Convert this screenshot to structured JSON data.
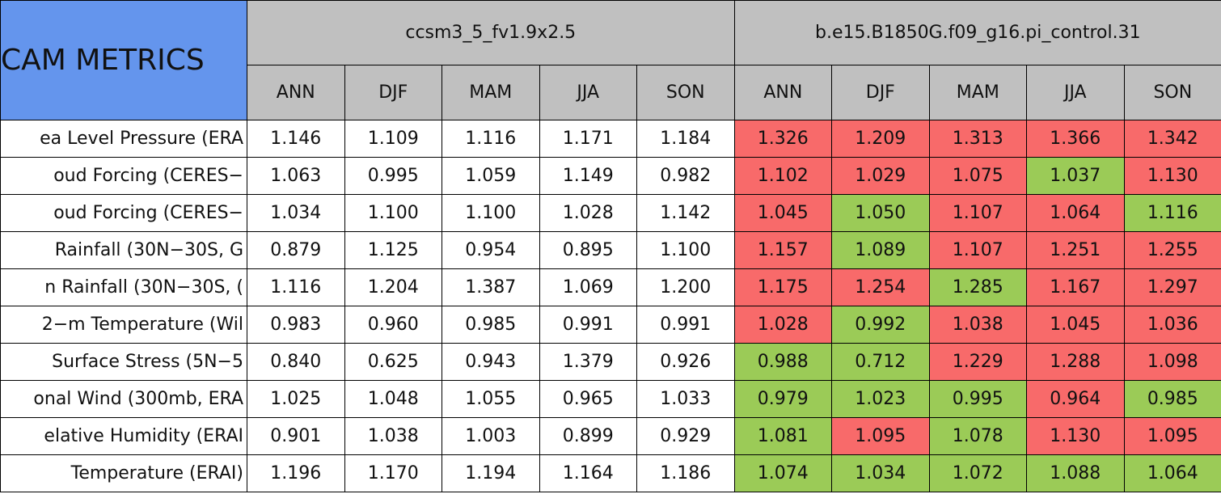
{
  "header": {
    "title": "CAM METRICS",
    "groups": [
      "ccsm3_5_fv1.9x2.5",
      "b.e15.B1850G.f09_g16.pi_control.31"
    ],
    "columns": [
      "ANN",
      "DJF",
      "MAM",
      "JJA",
      "SON",
      "ANN",
      "DJF",
      "MAM",
      "JJA",
      "SON"
    ]
  },
  "colors": {
    "title": "#6495ed",
    "header": "#c0c0c0",
    "plain": "#ffffff",
    "worse": "#f86a6a",
    "better": "#9bcb57"
  },
  "rows": [
    {
      "label": "ea Level Pressure (ERA",
      "values": [
        "1.146",
        "1.109",
        "1.116",
        "1.171",
        "1.184",
        "1.326",
        "1.209",
        "1.313",
        "1.366",
        "1.342"
      ],
      "colors": [
        "plain",
        "plain",
        "plain",
        "plain",
        "plain",
        "worse",
        "worse",
        "worse",
        "worse",
        "worse"
      ]
    },
    {
      "label": "oud Forcing (CERES−",
      "values": [
        "1.063",
        "0.995",
        "1.059",
        "1.149",
        "0.982",
        "1.102",
        "1.029",
        "1.075",
        "1.037",
        "1.130"
      ],
      "colors": [
        "plain",
        "plain",
        "plain",
        "plain",
        "plain",
        "worse",
        "worse",
        "worse",
        "better",
        "worse"
      ]
    },
    {
      "label": "oud Forcing (CERES−",
      "values": [
        "1.034",
        "1.100",
        "1.100",
        "1.028",
        "1.142",
        "1.045",
        "1.050",
        "1.107",
        "1.064",
        "1.116"
      ],
      "colors": [
        "plain",
        "plain",
        "plain",
        "plain",
        "plain",
        "worse",
        "better",
        "worse",
        "worse",
        "better"
      ]
    },
    {
      "label": "Rainfall (30N−30S, G",
      "values": [
        "0.879",
        "1.125",
        "0.954",
        "0.895",
        "1.100",
        "1.157",
        "1.089",
        "1.107",
        "1.251",
        "1.255"
      ],
      "colors": [
        "plain",
        "plain",
        "plain",
        "plain",
        "plain",
        "worse",
        "better",
        "worse",
        "worse",
        "worse"
      ]
    },
    {
      "label": "n Rainfall (30N−30S, (",
      "values": [
        "1.116",
        "1.204",
        "1.387",
        "1.069",
        "1.200",
        "1.175",
        "1.254",
        "1.285",
        "1.167",
        "1.297"
      ],
      "colors": [
        "plain",
        "plain",
        "plain",
        "plain",
        "plain",
        "worse",
        "worse",
        "better",
        "worse",
        "worse"
      ]
    },
    {
      "label": "2−m Temperature (Wil",
      "values": [
        "0.983",
        "0.960",
        "0.985",
        "0.991",
        "0.991",
        "1.028",
        "0.992",
        "1.038",
        "1.045",
        "1.036"
      ],
      "colors": [
        "plain",
        "plain",
        "plain",
        "plain",
        "plain",
        "worse",
        "better",
        "worse",
        "worse",
        "worse"
      ]
    },
    {
      "label": "Surface Stress (5N−5",
      "values": [
        "0.840",
        "0.625",
        "0.943",
        "1.379",
        "0.926",
        "0.988",
        "0.712",
        "1.229",
        "1.288",
        "1.098"
      ],
      "colors": [
        "plain",
        "plain",
        "plain",
        "plain",
        "plain",
        "better",
        "better",
        "worse",
        "worse",
        "worse"
      ]
    },
    {
      "label": "onal Wind (300mb, ERA",
      "values": [
        "1.025",
        "1.048",
        "1.055",
        "0.965",
        "1.033",
        "0.979",
        "1.023",
        "0.995",
        "0.964",
        "0.985"
      ],
      "colors": [
        "plain",
        "plain",
        "plain",
        "plain",
        "plain",
        "better",
        "better",
        "better",
        "worse",
        "better"
      ]
    },
    {
      "label": "elative Humidity (ERAI",
      "values": [
        "0.901",
        "1.038",
        "1.003",
        "0.899",
        "0.929",
        "1.081",
        "1.095",
        "1.078",
        "1.130",
        "1.095"
      ],
      "colors": [
        "plain",
        "plain",
        "plain",
        "plain",
        "plain",
        "better",
        "worse",
        "better",
        "worse",
        "worse"
      ]
    },
    {
      "label": "Temperature (ERAI)",
      "values": [
        "1.196",
        "1.170",
        "1.194",
        "1.164",
        "1.186",
        "1.074",
        "1.034",
        "1.072",
        "1.088",
        "1.064"
      ],
      "colors": [
        "plain",
        "plain",
        "plain",
        "plain",
        "plain",
        "better",
        "better",
        "better",
        "better",
        "better"
      ]
    }
  ]
}
